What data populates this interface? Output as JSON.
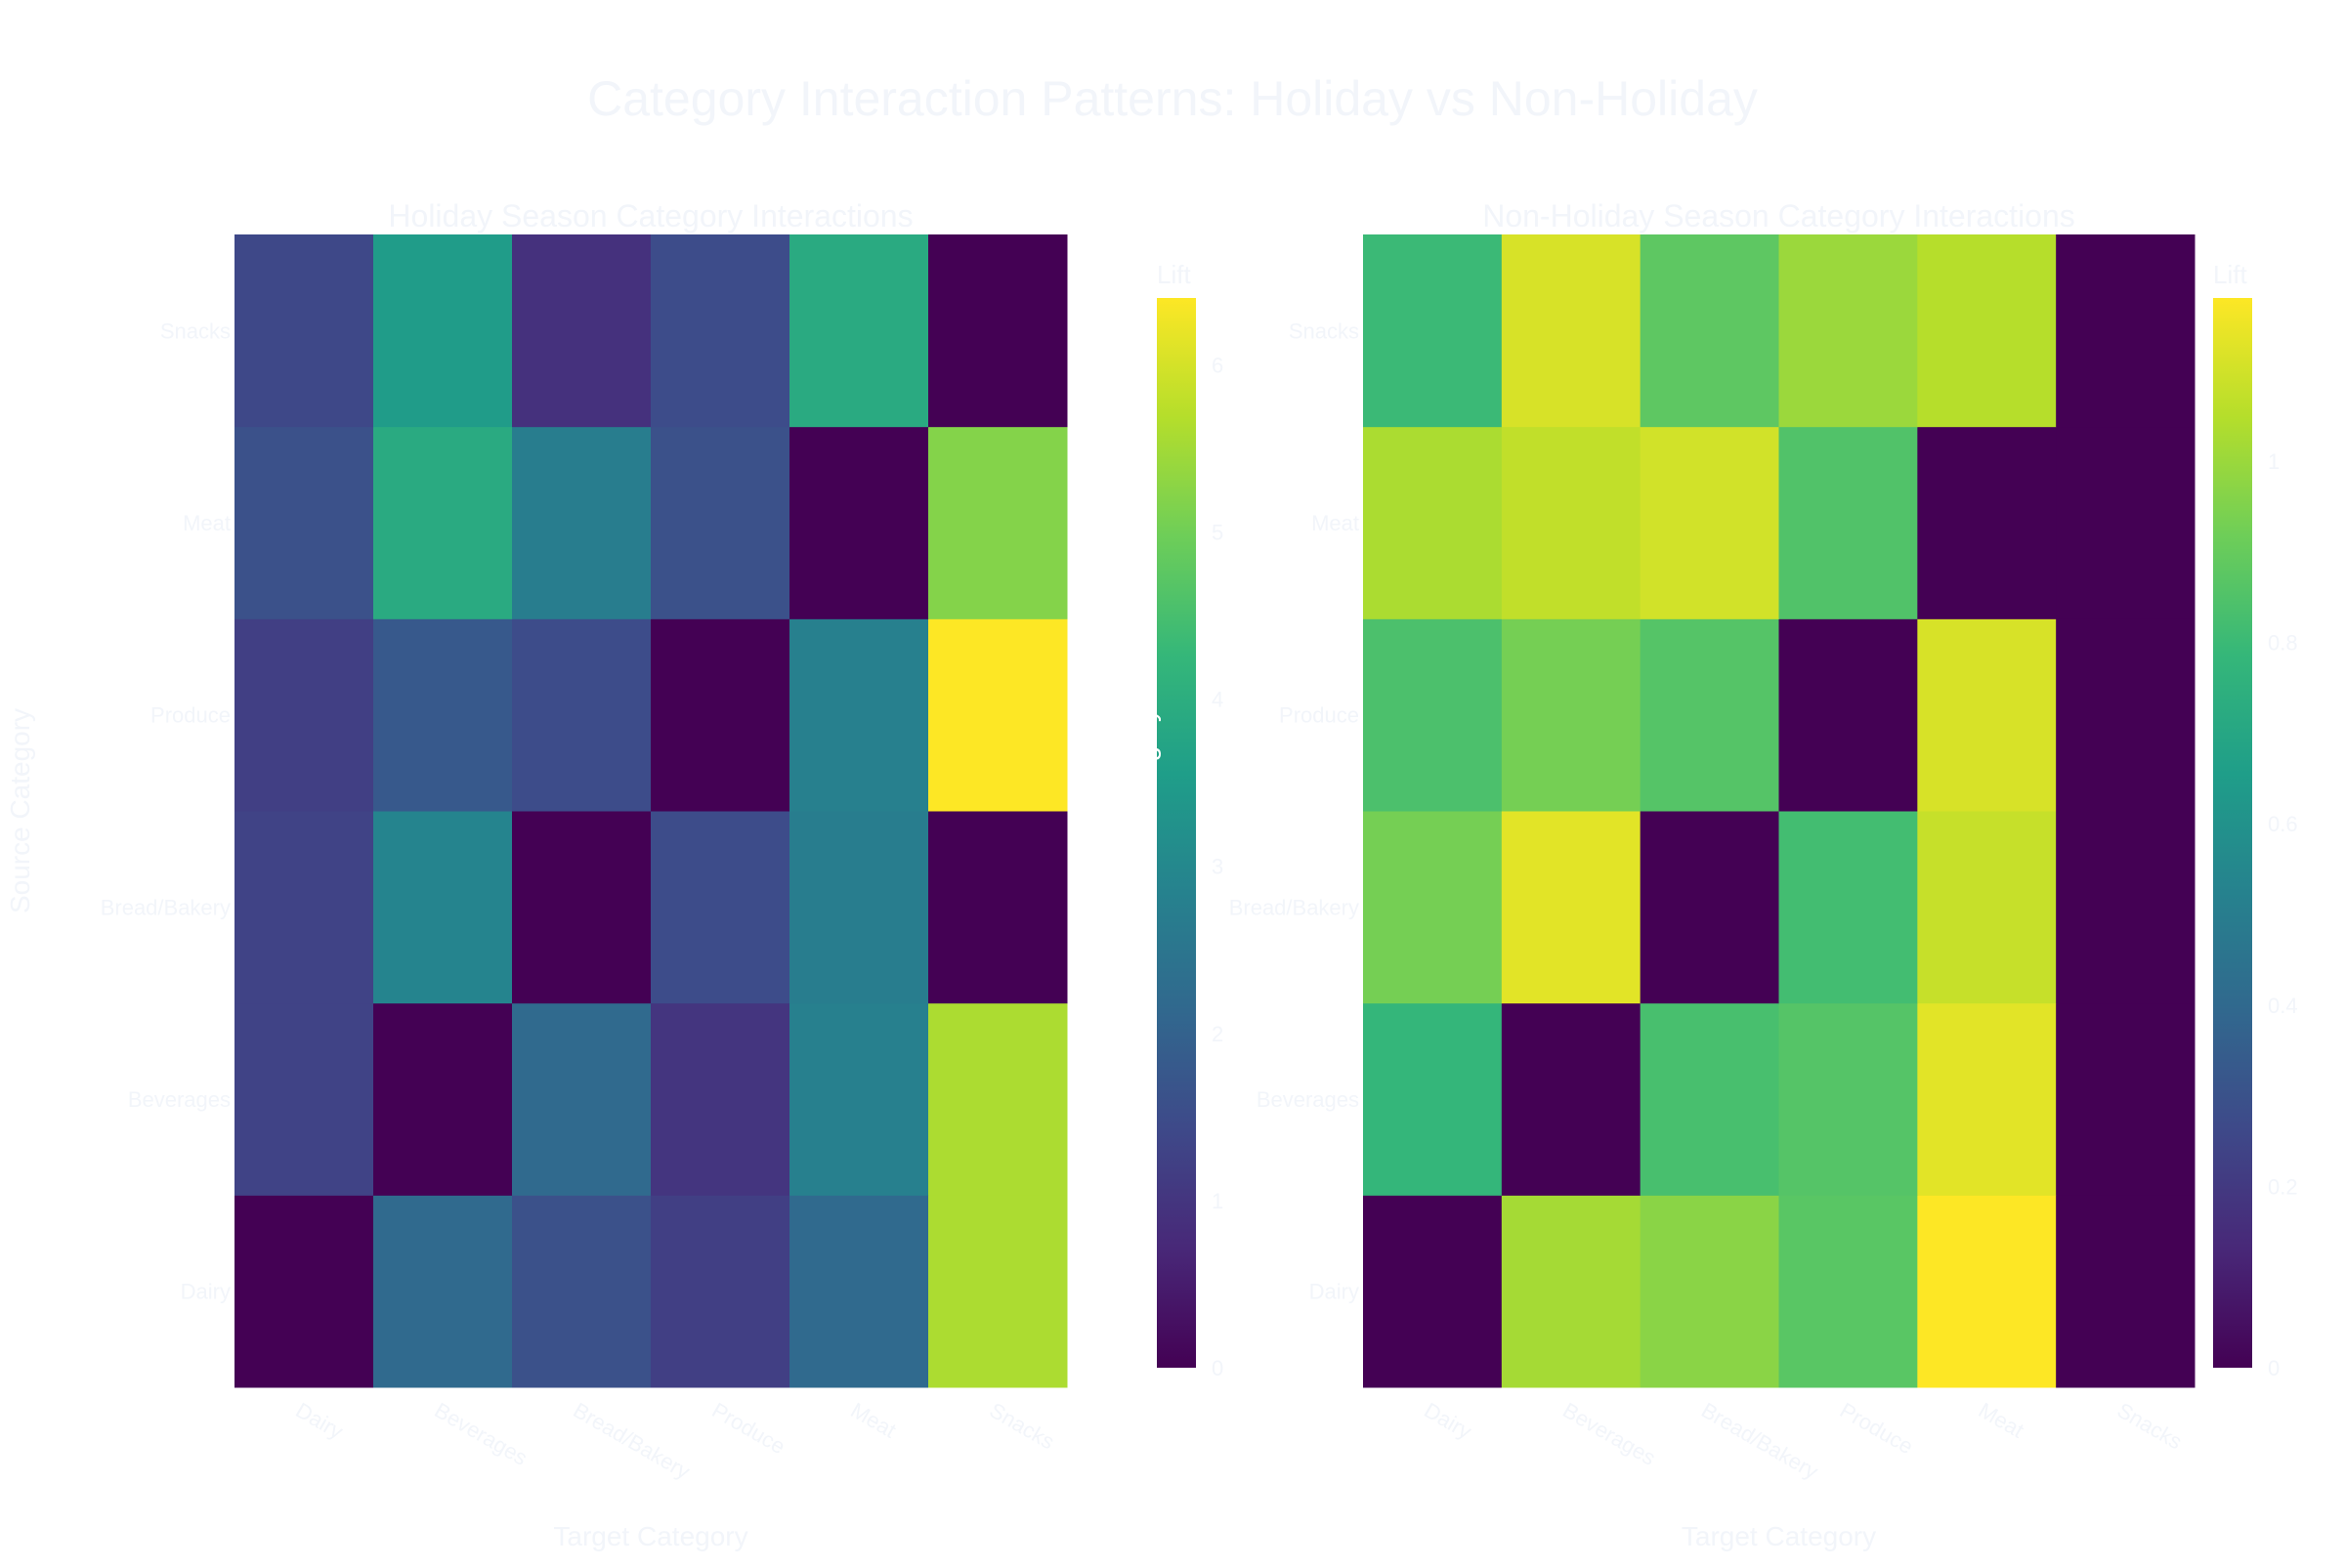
{
  "title": "Category Interaction Patterns: Holiday vs Non-Holiday",
  "chart_data": [
    {
      "type": "heatmap",
      "title": "Holiday Season Category Interactions",
      "xlabel": "Target Category",
      "ylabel": "Source Category",
      "x_categories": [
        "Dairy",
        "Beverages",
        "Bread/Bakery",
        "Produce",
        "Meat",
        "Snacks"
      ],
      "y_categories": [
        "Dairy",
        "Beverages",
        "Bread/Bakery",
        "Produce",
        "Meat",
        "Snacks"
      ],
      "z": [
        [
          0.0,
          2.2,
          1.6,
          1.2,
          2.2,
          5.6
        ],
        [
          1.3,
          0.0,
          2.2,
          1.0,
          2.8,
          5.6
        ],
        [
          1.3,
          2.9,
          0.0,
          1.5,
          2.7,
          0.0
        ],
        [
          1.2,
          1.8,
          1.5,
          0.0,
          2.8,
          6.4
        ],
        [
          1.6,
          3.9,
          2.7,
          1.6,
          0.0,
          5.2
        ],
        [
          1.4,
          3.5,
          0.9,
          1.5,
          3.9,
          0.0
        ]
      ],
      "zmin": 0,
      "zmax": 6.4,
      "colorbar": {
        "title": "Lift",
        "tickvals": [
          0,
          1,
          2,
          3,
          4,
          5,
          6
        ]
      }
    },
    {
      "type": "heatmap",
      "title": "Non-Holiday Season Category Interactions",
      "xlabel": "Target Category",
      "ylabel": "Source Category",
      "x_categories": [
        "Dairy",
        "Beverages",
        "Bread/Bakery",
        "Produce",
        "Meat",
        "Snacks"
      ],
      "y_categories": [
        "Dairy",
        "Beverages",
        "Bread/Bakery",
        "Produce",
        "Meat",
        "Snacks"
      ],
      "z": [
        [
          0.0,
          1.02,
          0.97,
          0.87,
          1.18,
          0.0
        ],
        [
          0.78,
          0.0,
          0.83,
          0.86,
          1.13,
          0.0
        ],
        [
          0.93,
          1.13,
          0.0,
          0.82,
          1.08,
          0.0
        ],
        [
          0.84,
          0.93,
          0.86,
          0.0,
          1.11,
          0.0
        ],
        [
          1.03,
          1.07,
          1.1,
          0.85,
          0.0,
          0.0
        ],
        [
          0.8,
          1.11,
          0.88,
          1.0,
          1.05,
          0.0
        ]
      ],
      "zmin": 0,
      "zmax": 1.18,
      "colorbar": {
        "title": "Lift",
        "tickvals": [
          0,
          0.2,
          0.4,
          0.6,
          0.8,
          1
        ]
      }
    }
  ],
  "colors": {
    "viridis": [
      "#440154",
      "#482878",
      "#3e4989",
      "#31688e",
      "#26828e",
      "#1f9e89",
      "#35b779",
      "#6ece58",
      "#b5de2b",
      "#fde725"
    ],
    "title_text": "#f2f5fa",
    "label_text": "#f2f5fa",
    "background": "#ffffff"
  }
}
